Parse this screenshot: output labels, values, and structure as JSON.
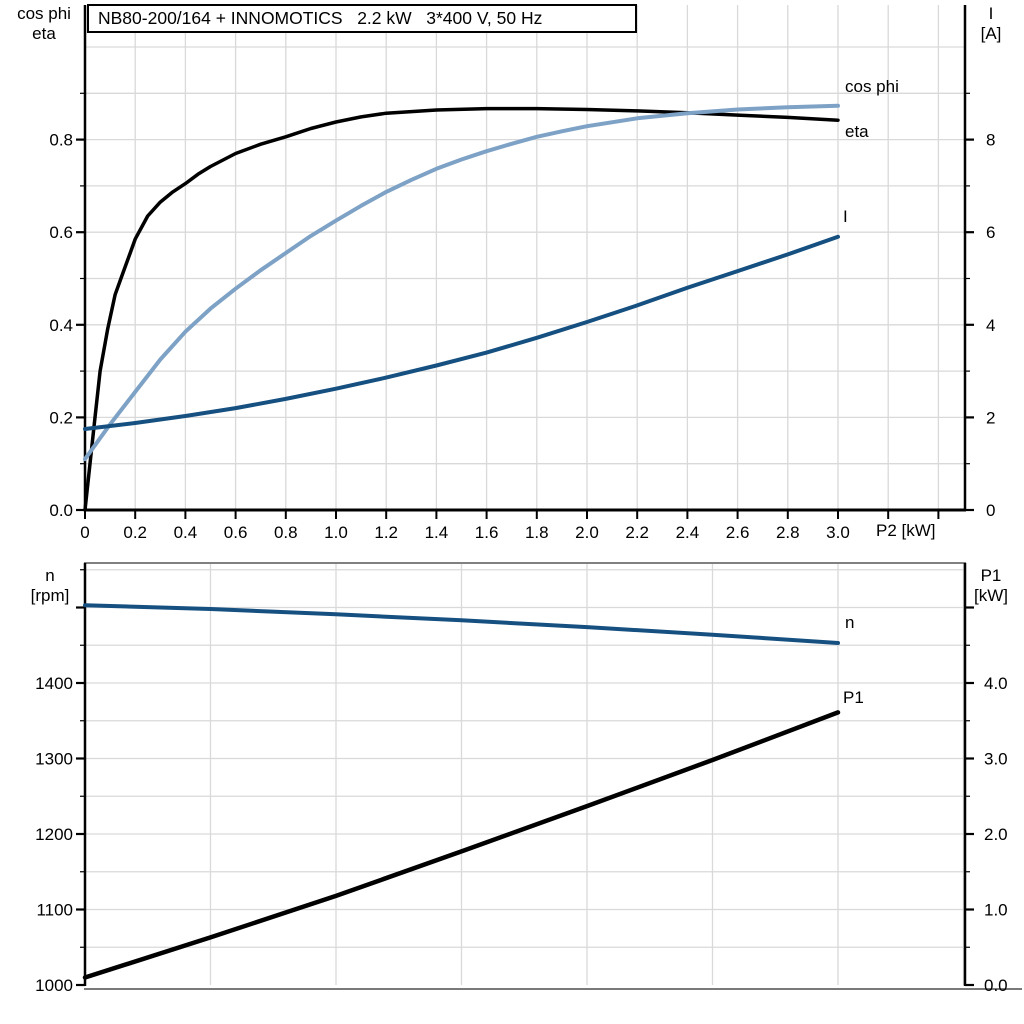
{
  "title": "NB80-200/164 + INNOMOTICS   2.2 kW   3*400 V, 50 Hz",
  "colors": {
    "eta": "#000000",
    "cos_phi": "#7da2c6",
    "current": "#155081",
    "speed": "#155081",
    "p1": "#000000",
    "grid": "#d9d9d9",
    "axis": "#000000",
    "frame": "#808080"
  },
  "chart_data": [
    {
      "type": "line",
      "xlabel": "P2 [kW]",
      "left_header": [
        "cos phi",
        "eta"
      ],
      "right_header": [
        "I",
        "[A]"
      ],
      "x_range": [
        0,
        3.5
      ],
      "grid": "on",
      "x_ticks": [
        [
          0,
          "0"
        ],
        [
          0.2,
          "0.2"
        ],
        [
          0.4,
          "0.4"
        ],
        [
          0.6,
          "0.6"
        ],
        [
          0.8,
          "0.8"
        ],
        [
          1.0,
          "1.0"
        ],
        [
          1.2,
          "1.2"
        ],
        [
          1.4,
          "1.4"
        ],
        [
          1.6,
          "1.6"
        ],
        [
          1.8,
          "1.8"
        ],
        [
          2.0,
          "2.0"
        ],
        [
          2.2,
          "2.2"
        ],
        [
          2.4,
          "2.4"
        ],
        [
          2.6,
          "2.6"
        ],
        [
          2.8,
          "2.8"
        ],
        [
          3.0,
          "3.0"
        ],
        [
          3.2,
          null
        ],
        [
          3.4,
          null
        ]
      ],
      "left_axis": {
        "range": [
          0,
          1.09
        ],
        "ticks": [
          [
            0,
            "0.0"
          ],
          [
            0.2,
            "0.2"
          ],
          [
            0.4,
            "0.4"
          ],
          [
            0.6,
            "0.6"
          ],
          [
            0.8,
            "0.8"
          ]
        ],
        "minor": [
          0.1,
          0.3,
          0.5,
          0.7,
          0.9
        ]
      },
      "right_axis": {
        "range": [
          0,
          10.9
        ],
        "ticks": [
          [
            0,
            "0"
          ],
          [
            2,
            "2"
          ],
          [
            4,
            "4"
          ],
          [
            6,
            "6"
          ],
          [
            8,
            "8"
          ]
        ],
        "minor": [
          1,
          3,
          5,
          7,
          9
        ]
      },
      "series": [
        {
          "name": "eta",
          "label": "eta",
          "axis": "left",
          "color_key": "eta",
          "width": 3.5,
          "points": [
            [
              0,
              0
            ],
            [
              0.02,
              0.1
            ],
            [
              0.04,
              0.2
            ],
            [
              0.06,
              0.3
            ],
            [
              0.09,
              0.39
            ],
            [
              0.12,
              0.465
            ],
            [
              0.15,
              0.51
            ],
            [
              0.18,
              0.555
            ],
            [
              0.2,
              0.585
            ],
            [
              0.25,
              0.635
            ],
            [
              0.3,
              0.665
            ],
            [
              0.35,
              0.687
            ],
            [
              0.4,
              0.705
            ],
            [
              0.45,
              0.725
            ],
            [
              0.5,
              0.742
            ],
            [
              0.6,
              0.77
            ],
            [
              0.7,
              0.79
            ],
            [
              0.8,
              0.806
            ],
            [
              0.9,
              0.824
            ],
            [
              1.0,
              0.838
            ],
            [
              1.1,
              0.849
            ],
            [
              1.2,
              0.857
            ],
            [
              1.4,
              0.864
            ],
            [
              1.6,
              0.867
            ],
            [
              1.8,
              0.867
            ],
            [
              2.0,
              0.865
            ],
            [
              2.2,
              0.862
            ],
            [
              2.4,
              0.858
            ],
            [
              2.6,
              0.853
            ],
            [
              2.8,
              0.848
            ],
            [
              3.0,
              0.842
            ]
          ]
        },
        {
          "name": "cos phi",
          "label": "cos phi",
          "axis": "left",
          "color_key": "cos_phi",
          "width": 4,
          "points": [
            [
              0,
              0.11
            ],
            [
              0.1,
              0.185
            ],
            [
              0.2,
              0.255
            ],
            [
              0.3,
              0.325
            ],
            [
              0.4,
              0.385
            ],
            [
              0.5,
              0.435
            ],
            [
              0.6,
              0.478
            ],
            [
              0.7,
              0.518
            ],
            [
              0.8,
              0.555
            ],
            [
              0.9,
              0.592
            ],
            [
              1.0,
              0.625
            ],
            [
              1.1,
              0.657
            ],
            [
              1.2,
              0.687
            ],
            [
              1.3,
              0.713
            ],
            [
              1.4,
              0.737
            ],
            [
              1.5,
              0.757
            ],
            [
              1.6,
              0.775
            ],
            [
              1.7,
              0.791
            ],
            [
              1.8,
              0.806
            ],
            [
              1.9,
              0.818
            ],
            [
              2.0,
              0.829
            ],
            [
              2.2,
              0.846
            ],
            [
              2.4,
              0.857
            ],
            [
              2.6,
              0.865
            ],
            [
              2.8,
              0.87
            ],
            [
              3.0,
              0.873
            ]
          ]
        },
        {
          "name": "I",
          "label": "I",
          "axis": "right",
          "color_key": "current",
          "width": 4,
          "points": [
            [
              0,
              1.75
            ],
            [
              0.2,
              1.88
            ],
            [
              0.4,
              2.03
            ],
            [
              0.6,
              2.2
            ],
            [
              0.8,
              2.4
            ],
            [
              1.0,
              2.62
            ],
            [
              1.2,
              2.86
            ],
            [
              1.4,
              3.12
            ],
            [
              1.6,
              3.4
            ],
            [
              1.8,
              3.72
            ],
            [
              2.0,
              4.06
            ],
            [
              2.2,
              4.42
            ],
            [
              2.4,
              4.8
            ],
            [
              2.6,
              5.16
            ],
            [
              2.8,
              5.52
            ],
            [
              3.0,
              5.9
            ]
          ]
        }
      ]
    },
    {
      "type": "line",
      "xlabel": "",
      "left_header": [
        "n",
        "[rpm]"
      ],
      "right_header": [
        "P1",
        "[kW]"
      ],
      "x_range": [
        0,
        3.5
      ],
      "grid": "on",
      "x_ticks": [],
      "left_axis": {
        "range": [
          1000,
          1559
        ],
        "ticks": [
          [
            1000,
            "1000"
          ],
          [
            1100,
            "1100"
          ],
          [
            1200,
            "1200"
          ],
          [
            1300,
            "1300"
          ],
          [
            1400,
            "1400"
          ],
          [
            1500,
            null
          ]
        ],
        "minor": [
          1050,
          1150,
          1250,
          1350,
          1450,
          1550
        ]
      },
      "right_axis": {
        "range": [
          0,
          5.59
        ],
        "ticks": [
          [
            0,
            "0.0"
          ],
          [
            1,
            "1.0"
          ],
          [
            2,
            "2.0"
          ],
          [
            3,
            "3.0"
          ],
          [
            4,
            "4.0"
          ],
          [
            5,
            null
          ]
        ],
        "minor": [
          0.5,
          1.5,
          2.5,
          3.5,
          4.5
        ]
      },
      "series": [
        {
          "name": "n",
          "label": "n",
          "axis": "left",
          "color_key": "speed",
          "width": 4,
          "points": [
            [
              0,
              1503
            ],
            [
              0.5,
              1498
            ],
            [
              1.0,
              1491
            ],
            [
              1.5,
              1483
            ],
            [
              2.0,
              1474
            ],
            [
              2.5,
              1464
            ],
            [
              3.0,
              1453
            ]
          ]
        },
        {
          "name": "P1",
          "label": "P1",
          "axis": "right",
          "color_key": "p1",
          "width": 4.5,
          "points": [
            [
              0,
              0.1
            ],
            [
              0.5,
              0.63
            ],
            [
              1.0,
              1.18
            ],
            [
              1.5,
              1.77
            ],
            [
              2.0,
              2.37
            ],
            [
              2.5,
              2.98
            ],
            [
              3.0,
              3.61
            ]
          ]
        }
      ]
    }
  ]
}
